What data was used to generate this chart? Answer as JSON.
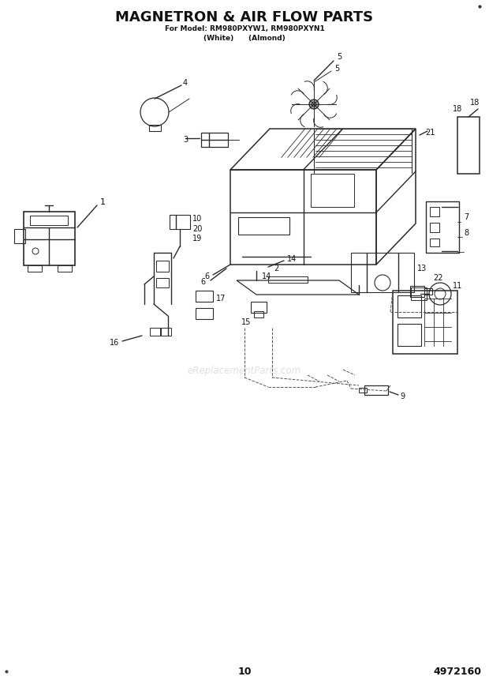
{
  "title_line1": "MAGNETRON & AIR FLOW PARTS",
  "title_line2": "For Model: RM980PXYW1, RM980PXYN1",
  "title_line3": "(White)      (Almond)",
  "page_number": "10",
  "part_number": "4972160",
  "watermark": "eReplacementParts.com",
  "bg_color": "#ffffff",
  "line_color": "#2a2a2a",
  "title_color": "#111111"
}
